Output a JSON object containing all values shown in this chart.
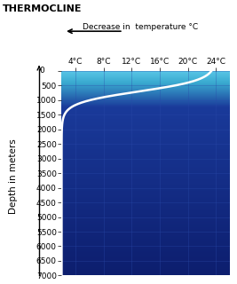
{
  "title": "THERMOCLINE",
  "arrow_label": "Decrease in  temperature °C",
  "xlabel_temps": [
    "4°C",
    "8°C",
    "12°C",
    "16°C",
    "20°C",
    "24°C"
  ],
  "xlabel_vals": [
    4,
    8,
    12,
    16,
    20,
    24
  ],
  "ylabel": "Depth in meters",
  "depth_min": 0,
  "depth_max": 7000,
  "temp_min": 2,
  "temp_max": 26,
  "yticks": [
    0,
    500,
    1000,
    1500,
    2000,
    2500,
    3000,
    3500,
    4000,
    4500,
    5000,
    5500,
    6000,
    6500,
    7000
  ],
  "color_surface": "#5bc8e8",
  "color_mid1": "#3aaad0",
  "color_mid2": "#1a3a9a",
  "color_deep": "#0d1e6e",
  "curve_color": "#ffffff",
  "grid_color": "#2a4aaa",
  "title_fontsize": 8,
  "axis_fontsize": 6.5,
  "ylabel_fontsize": 7.5
}
